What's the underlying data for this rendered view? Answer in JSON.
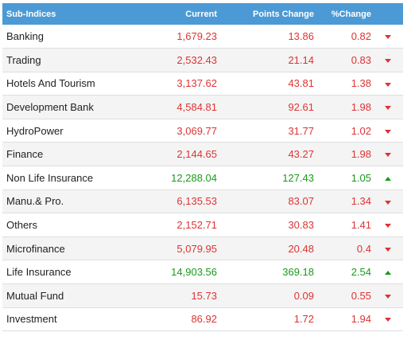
{
  "headers": {
    "name": "Sub-Indices",
    "current": "Current",
    "points_change": "Points Change",
    "pct_change": "%Change"
  },
  "colors": {
    "header_bg": "#4b9ad5",
    "down": "#dd3333",
    "up": "#1a9a1a"
  },
  "rows": [
    {
      "name": "Banking",
      "current": "1,679.23",
      "points": "13.86",
      "pct": "0.82",
      "direction": "down"
    },
    {
      "name": "Trading",
      "current": "2,532.43",
      "points": "21.14",
      "pct": "0.83",
      "direction": "down"
    },
    {
      "name": "Hotels And Tourism",
      "current": "3,137.62",
      "points": "43.81",
      "pct": "1.38",
      "direction": "down"
    },
    {
      "name": "Development Bank",
      "current": "4,584.81",
      "points": "92.61",
      "pct": "1.98",
      "direction": "down"
    },
    {
      "name": "HydroPower",
      "current": "3,069.77",
      "points": "31.77",
      "pct": "1.02",
      "direction": "down"
    },
    {
      "name": "Finance",
      "current": "2,144.65",
      "points": "43.27",
      "pct": "1.98",
      "direction": "down"
    },
    {
      "name": "Non Life Insurance",
      "current": "12,288.04",
      "points": "127.43",
      "pct": "1.05",
      "direction": "up"
    },
    {
      "name": "Manu.& Pro.",
      "current": "6,135.53",
      "points": "83.07",
      "pct": "1.34",
      "direction": "down"
    },
    {
      "name": "Others",
      "current": "2,152.71",
      "points": "30.83",
      "pct": "1.41",
      "direction": "down"
    },
    {
      "name": "Microfinance",
      "current": "5,079.95",
      "points": "20.48",
      "pct": "0.4",
      "direction": "down"
    },
    {
      "name": "Life Insurance",
      "current": "14,903.56",
      "points": "369.18",
      "pct": "2.54",
      "direction": "up"
    },
    {
      "name": "Mutual Fund",
      "current": "15.73",
      "points": "0.09",
      "pct": "0.55",
      "direction": "down"
    },
    {
      "name": "Investment",
      "current": "86.92",
      "points": "1.72",
      "pct": "1.94",
      "direction": "down"
    }
  ]
}
